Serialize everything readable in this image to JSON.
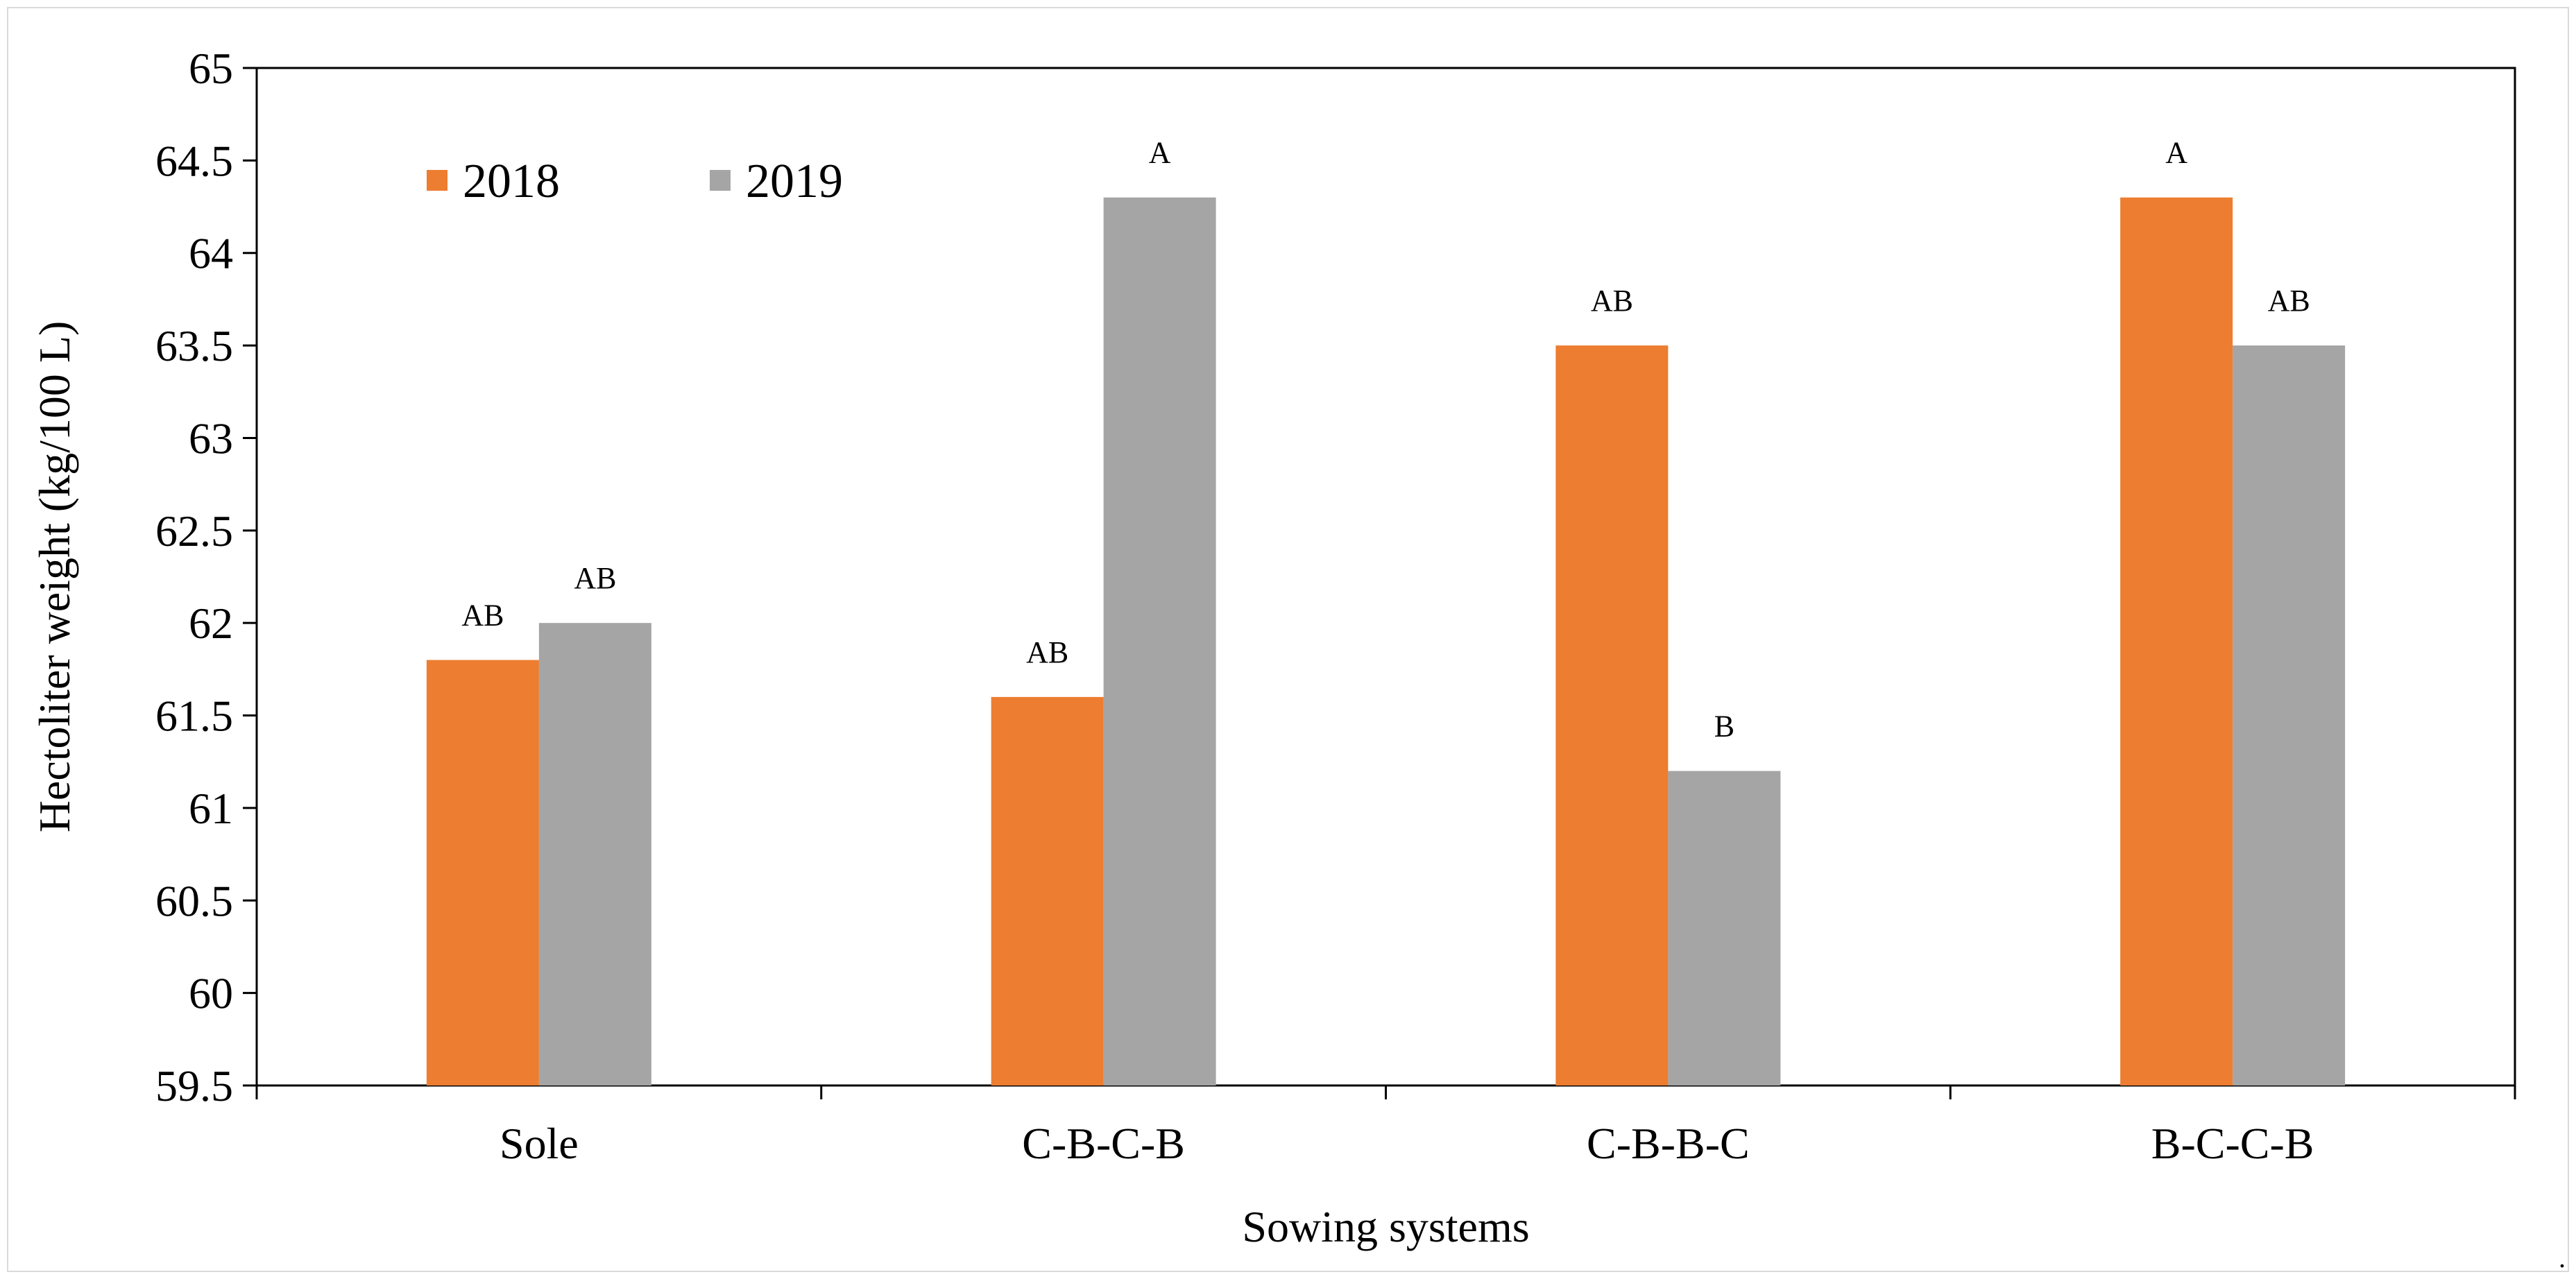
{
  "chart_data": {
    "type": "bar",
    "title": "",
    "xlabel": "Sowing systems",
    "ylabel": "Hectoliter weight (kg/100 L)",
    "ylim": [
      59.5,
      65
    ],
    "ytick_step": 0.5,
    "yticks": [
      "59.5",
      "60",
      "60.5",
      "61",
      "61.5",
      "62",
      "62.5",
      "63",
      "63.5",
      "64",
      "64.5",
      "65"
    ],
    "categories": [
      "Sole",
      "C-B-C-B",
      "C-B-B-C",
      "B-C-C-B"
    ],
    "series": [
      {
        "name": "2018",
        "color": "#ED7D31",
        "values": [
          61.8,
          61.6,
          63.5,
          64.3
        ],
        "labels": [
          "AB",
          "AB",
          "AB",
          "A"
        ]
      },
      {
        "name": "2019",
        "color": "#A5A5A5",
        "values": [
          62.0,
          64.3,
          61.2,
          63.5
        ],
        "labels": [
          "AB",
          "A",
          "B",
          "AB"
        ]
      }
    ],
    "legend": {
      "position": "top-left",
      "entries": [
        "2018",
        "2019"
      ]
    },
    "grid": false
  }
}
